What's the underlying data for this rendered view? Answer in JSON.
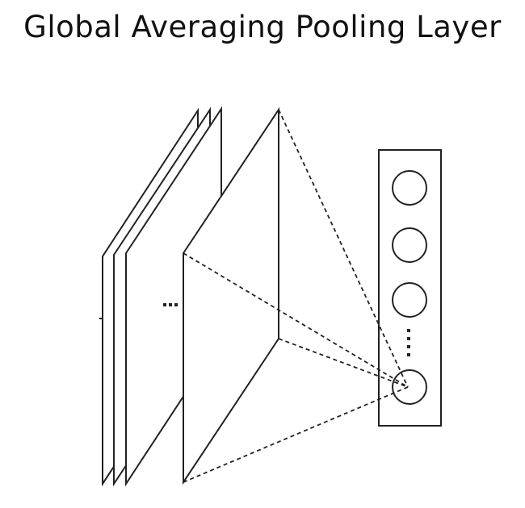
{
  "title": "Global Averaging Pooling Layer",
  "diagram": {
    "stroke_color": "#222222",
    "background": "#ffffff",
    "feature_map_count_shown": 4,
    "output_neurons_shown": 4,
    "ellipsis_between_maps": true,
    "ellipsis_between_neurons": true
  }
}
